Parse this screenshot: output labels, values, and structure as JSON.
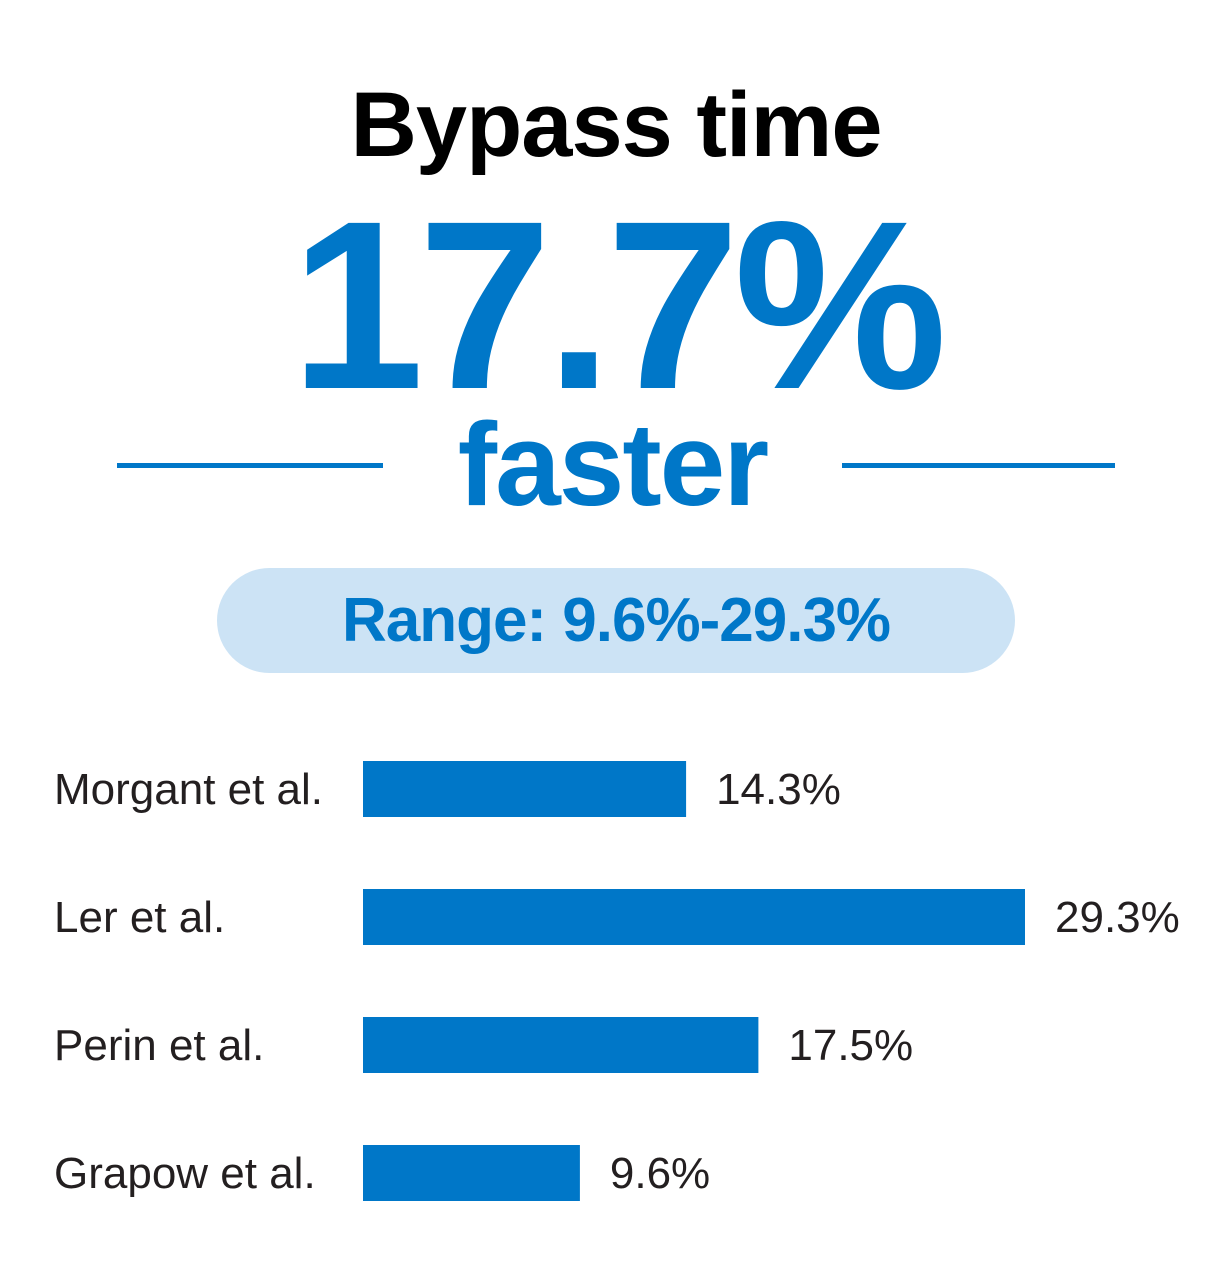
{
  "title": "Bypass time",
  "headline": {
    "value": "17.7%",
    "subtitle": "faster"
  },
  "range_label": "Range: 9.6%-29.3%",
  "colors": {
    "accent": "#0077c8",
    "pill_background": "#cce3f5",
    "title": "#000000",
    "labels": "#231f20"
  },
  "chart_data": {
    "type": "bar",
    "orientation": "horizontal",
    "categories": [
      "Morgant et al.",
      "Ler et al.",
      "Perin et al.",
      "Grapow et al."
    ],
    "values": [
      14.3,
      29.3,
      17.5,
      9.6
    ],
    "value_labels": [
      "14.3%",
      "29.3%",
      "17.5%",
      "9.6%"
    ],
    "xlim": [
      0,
      29.3
    ],
    "grid": false,
    "legend": "none"
  }
}
